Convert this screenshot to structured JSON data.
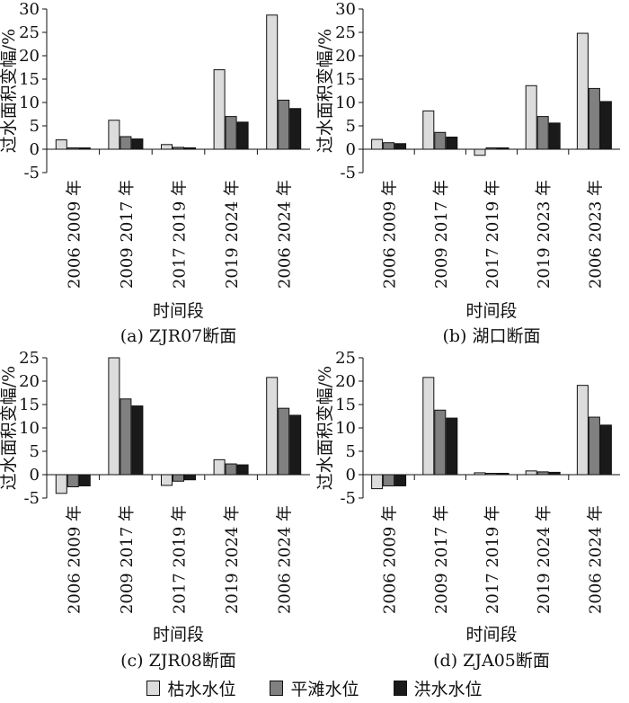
{
  "legend": {
    "items": [
      {
        "label": "枯水水位",
        "color": "#dcdcdc"
      },
      {
        "label": "平滩水位",
        "color": "#808080"
      },
      {
        "label": "洪水水位",
        "color": "#1a1a1a"
      }
    ]
  },
  "chart_data": [
    {
      "type": "bar",
      "caption": "(a) ZJR07断面",
      "xlabel": "时间段",
      "ylabel": "过水面积变幅/%",
      "ylim": [
        -5,
        30
      ],
      "yticks": [
        -5,
        0,
        5,
        10,
        15,
        20,
        25,
        30
      ],
      "categories": [
        "2006 2009 年",
        "2009 2017 年",
        "2017 2019 年",
        "2019 2024 年",
        "2006 2024 年"
      ],
      "series": [
        {
          "name": "枯水水位",
          "values": [
            2.0,
            6.2,
            1.0,
            17.0,
            28.7
          ]
        },
        {
          "name": "平滩水位",
          "values": [
            0.1,
            2.7,
            0.4,
            7.0,
            10.5
          ]
        },
        {
          "name": "洪水水位",
          "values": [
            0.1,
            2.2,
            0.3,
            5.8,
            8.7
          ]
        }
      ]
    },
    {
      "type": "bar",
      "caption": "(b) 湖口断面",
      "xlabel": "时间段",
      "ylabel": "过水面积变幅/%",
      "ylim": [
        -5,
        30
      ],
      "yticks": [
        -5,
        0,
        5,
        10,
        15,
        20,
        25,
        30
      ],
      "categories": [
        "2006 2009 年",
        "2009 2017 年",
        "2017 2019 年",
        "2019 2023 年",
        "2006 2023 年"
      ],
      "series": [
        {
          "name": "枯水水位",
          "values": [
            2.1,
            8.2,
            -1.3,
            13.6,
            24.8
          ]
        },
        {
          "name": "平滩水位",
          "values": [
            1.4,
            3.6,
            0.1,
            7.0,
            13.0
          ]
        },
        {
          "name": "洪水水位",
          "values": [
            1.2,
            2.6,
            0.2,
            5.6,
            10.2
          ]
        }
      ]
    },
    {
      "type": "bar",
      "caption": "(c) ZJR08断面",
      "xlabel": "时间段",
      "ylabel": "过水面积变幅/%",
      "ylim": [
        -5,
        25
      ],
      "yticks": [
        -5,
        0,
        5,
        10,
        15,
        20,
        25
      ],
      "categories": [
        "2006 2009 年",
        "2009 2017 年",
        "2017 2019 年",
        "2019 2024 年",
        "2006 2024 年"
      ],
      "series": [
        {
          "name": "枯水水位",
          "values": [
            -4.0,
            25.0,
            -2.3,
            3.2,
            20.8
          ]
        },
        {
          "name": "平滩水位",
          "values": [
            -2.6,
            16.2,
            -1.4,
            2.3,
            14.2
          ]
        },
        {
          "name": "洪水水位",
          "values": [
            -2.4,
            14.7,
            -1.1,
            2.1,
            12.7
          ]
        }
      ]
    },
    {
      "type": "bar",
      "caption": "(d) ZJA05断面",
      "xlabel": "时间段",
      "ylabel": "过水面积变幅/%",
      "ylim": [
        -5,
        25
      ],
      "yticks": [
        -5,
        0,
        5,
        10,
        15,
        20,
        25
      ],
      "categories": [
        "2006 2009 年",
        "2009 2017 年",
        "2017 2019 年",
        "2019 2024 年",
        "2006 2024 年"
      ],
      "series": [
        {
          "name": "枯水水位",
          "values": [
            -3.0,
            20.8,
            0.4,
            0.8,
            19.1
          ]
        },
        {
          "name": "平滩水位",
          "values": [
            -2.4,
            13.8,
            0.2,
            0.6,
            12.3
          ]
        },
        {
          "name": "洪水水位",
          "values": [
            -2.4,
            12.1,
            0.2,
            0.5,
            10.6
          ]
        }
      ]
    }
  ]
}
